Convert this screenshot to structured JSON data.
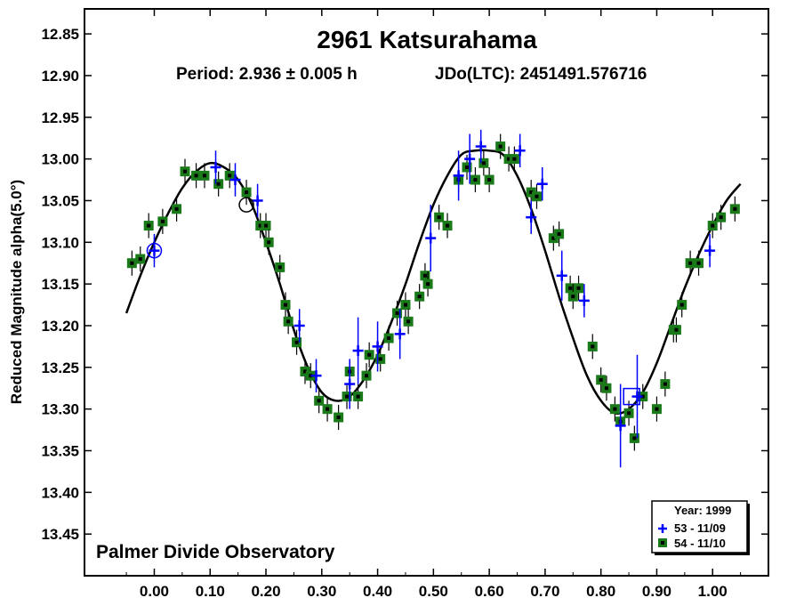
{
  "chart_data": {
    "type": "scatter",
    "title": "2961 Katsurahama",
    "subtitle_period": "Period: 2.936 ± 0.005 h",
    "subtitle_epoch": "JDo(LTC): 2451491.576716",
    "ylabel": "Reduced Magnitude alpha(5.0°)",
    "xlabel": "",
    "observatory": "Palmer Divide Observatory",
    "xlim": [
      -0.125,
      1.1
    ],
    "ylim": [
      12.82,
      13.5
    ],
    "y_inverted": true,
    "grid": false,
    "legend_position": "bottom-right",
    "x_ticks": [
      0.0,
      0.1,
      0.2,
      0.3,
      0.4,
      0.5,
      0.6,
      0.7,
      0.8,
      0.9,
      1.0
    ],
    "x_tick_labels": [
      "0.00",
      "0.10",
      "0.20",
      "0.30",
      "0.40",
      "0.50",
      "0.60",
      "0.70",
      "0.80",
      "0.90",
      "1.00"
    ],
    "y_ticks": [
      12.85,
      12.9,
      12.95,
      13.0,
      13.05,
      13.1,
      13.15,
      13.2,
      13.25,
      13.3,
      13.35,
      13.4,
      13.45
    ],
    "y_tick_labels": [
      "12.85",
      "12.90",
      "12.95",
      "13.00",
      "13.05",
      "13.10",
      "13.15",
      "13.20",
      "13.25",
      "13.30",
      "13.35",
      "13.40",
      "13.45"
    ],
    "legend": {
      "title": "Year: 1999",
      "entries": [
        "53 - 11/09",
        "54 - 11/10"
      ]
    },
    "colors": {
      "series_53": "#0000ff",
      "series_54_fill": "#1a7a1a",
      "series_54_center": "#000000",
      "fit_curve": "#000000"
    },
    "series": [
      {
        "name": "53 - 11/09",
        "marker": "plus",
        "points": [
          [
            0.0,
            13.11,
            0.02
          ],
          [
            0.11,
            13.01,
            0.02
          ],
          [
            0.145,
            13.025,
            0.02
          ],
          [
            0.185,
            13.05,
            0.02
          ],
          [
            0.26,
            13.2,
            0.02
          ],
          [
            0.29,
            13.26,
            0.02
          ],
          [
            0.35,
            13.27,
            0.03
          ],
          [
            0.365,
            13.23,
            0.04
          ],
          [
            0.4,
            13.225,
            0.03
          ],
          [
            0.44,
            13.21,
            0.03
          ],
          [
            0.495,
            13.095,
            0.04
          ],
          [
            0.545,
            13.02,
            0.03
          ],
          [
            0.565,
            13.0,
            0.03
          ],
          [
            0.585,
            12.985,
            0.02
          ],
          [
            0.655,
            12.99,
            0.02
          ],
          [
            0.675,
            13.07,
            0.02
          ],
          [
            0.695,
            13.03,
            0.02
          ],
          [
            0.73,
            13.14,
            0.03
          ],
          [
            0.77,
            13.17,
            0.02
          ],
          [
            0.835,
            13.32,
            0.05
          ],
          [
            0.865,
            13.285,
            0.05
          ],
          [
            0.995,
            13.11,
            0.02
          ]
        ]
      },
      {
        "name": "54 - 11/10",
        "marker": "square",
        "points": [
          [
            -0.04,
            13.125,
            0.015
          ],
          [
            -0.025,
            13.12,
            0.015
          ],
          [
            -0.01,
            13.08,
            0.015
          ],
          [
            0.015,
            13.075,
            0.015
          ],
          [
            0.04,
            13.06,
            0.015
          ],
          [
            0.055,
            13.015,
            0.015
          ],
          [
            0.075,
            13.02,
            0.015
          ],
          [
            0.09,
            13.02,
            0.015
          ],
          [
            0.115,
            13.03,
            0.015
          ],
          [
            0.135,
            13.02,
            0.015
          ],
          [
            0.165,
            13.04,
            0.015
          ],
          [
            0.19,
            13.08,
            0.015
          ],
          [
            0.2,
            13.08,
            0.015
          ],
          [
            0.205,
            13.1,
            0.015
          ],
          [
            0.225,
            13.13,
            0.015
          ],
          [
            0.235,
            13.175,
            0.015
          ],
          [
            0.24,
            13.195,
            0.015
          ],
          [
            0.255,
            13.22,
            0.015
          ],
          [
            0.27,
            13.255,
            0.015
          ],
          [
            0.28,
            13.26,
            0.015
          ],
          [
            0.295,
            13.29,
            0.015
          ],
          [
            0.31,
            13.3,
            0.015
          ],
          [
            0.33,
            13.31,
            0.015
          ],
          [
            0.345,
            13.285,
            0.015
          ],
          [
            0.35,
            13.255,
            0.015
          ],
          [
            0.365,
            13.285,
            0.015
          ],
          [
            0.38,
            13.26,
            0.015
          ],
          [
            0.385,
            13.235,
            0.015
          ],
          [
            0.405,
            13.24,
            0.015
          ],
          [
            0.42,
            13.215,
            0.015
          ],
          [
            0.435,
            13.185,
            0.015
          ],
          [
            0.45,
            13.175,
            0.015
          ],
          [
            0.455,
            13.195,
            0.015
          ],
          [
            0.475,
            13.165,
            0.015
          ],
          [
            0.485,
            13.14,
            0.015
          ],
          [
            0.49,
            13.15,
            0.015
          ],
          [
            0.51,
            13.07,
            0.015
          ],
          [
            0.525,
            13.08,
            0.015
          ],
          [
            0.545,
            13.025,
            0.015
          ],
          [
            0.56,
            13.01,
            0.015
          ],
          [
            0.575,
            13.025,
            0.015
          ],
          [
            0.59,
            13.005,
            0.015
          ],
          [
            0.6,
            13.025,
            0.015
          ],
          [
            0.62,
            12.985,
            0.015
          ],
          [
            0.635,
            13.0,
            0.015
          ],
          [
            0.645,
            13.0,
            0.015
          ],
          [
            0.675,
            13.04,
            0.015
          ],
          [
            0.685,
            13.045,
            0.015
          ],
          [
            0.715,
            13.095,
            0.015
          ],
          [
            0.725,
            13.09,
            0.015
          ],
          [
            0.745,
            13.155,
            0.015
          ],
          [
            0.75,
            13.165,
            0.015
          ],
          [
            0.76,
            13.155,
            0.015
          ],
          [
            0.785,
            13.225,
            0.015
          ],
          [
            0.8,
            13.265,
            0.015
          ],
          [
            0.81,
            13.275,
            0.015
          ],
          [
            0.825,
            13.3,
            0.015
          ],
          [
            0.835,
            13.315,
            0.015
          ],
          [
            0.85,
            13.305,
            0.015
          ],
          [
            0.86,
            13.335,
            0.015
          ],
          [
            0.875,
            13.285,
            0.015
          ],
          [
            0.9,
            13.3,
            0.015
          ],
          [
            0.915,
            13.27,
            0.015
          ],
          [
            0.93,
            13.205,
            0.015
          ],
          [
            0.935,
            13.205,
            0.015
          ],
          [
            0.945,
            13.175,
            0.015
          ],
          [
            0.96,
            13.125,
            0.015
          ],
          [
            0.975,
            13.125,
            0.015
          ],
          [
            1.0,
            13.08,
            0.015
          ],
          [
            1.015,
            13.07,
            0.015
          ],
          [
            1.04,
            13.06,
            0.015
          ]
        ]
      }
    ],
    "fit_curve": {
      "x": [
        -0.05,
        -0.025,
        0.0,
        0.025,
        0.05,
        0.075,
        0.1,
        0.125,
        0.15,
        0.175,
        0.2,
        0.225,
        0.25,
        0.275,
        0.3,
        0.325,
        0.35,
        0.375,
        0.4,
        0.425,
        0.45,
        0.475,
        0.5,
        0.525,
        0.55,
        0.575,
        0.6,
        0.625,
        0.65,
        0.675,
        0.7,
        0.725,
        0.75,
        0.775,
        0.8,
        0.825,
        0.85,
        0.875,
        0.9,
        0.925,
        0.95,
        0.975,
        1.0,
        1.025,
        1.05
      ],
      "y": [
        13.185,
        13.14,
        13.1,
        13.065,
        13.035,
        13.015,
        13.005,
        13.01,
        13.025,
        13.055,
        13.1,
        13.15,
        13.205,
        13.25,
        13.28,
        13.29,
        13.285,
        13.265,
        13.235,
        13.195,
        13.15,
        13.1,
        13.055,
        13.02,
        12.995,
        12.99,
        12.99,
        12.995,
        13.02,
        13.06,
        13.11,
        13.165,
        13.215,
        13.26,
        13.29,
        13.305,
        13.3,
        13.28,
        13.245,
        13.2,
        13.155,
        13.115,
        13.08,
        13.05,
        13.03
      ]
    },
    "special_markers": [
      {
        "shape": "circle-plus",
        "series": "53 - 11/09",
        "x": 0.0,
        "y": 13.11
      },
      {
        "shape": "circle",
        "series": "54 - 11/10",
        "x": 0.165,
        "y": 13.055
      },
      {
        "shape": "box",
        "series": "53 - 11/09",
        "x": 0.855,
        "y": 13.285
      }
    ]
  }
}
